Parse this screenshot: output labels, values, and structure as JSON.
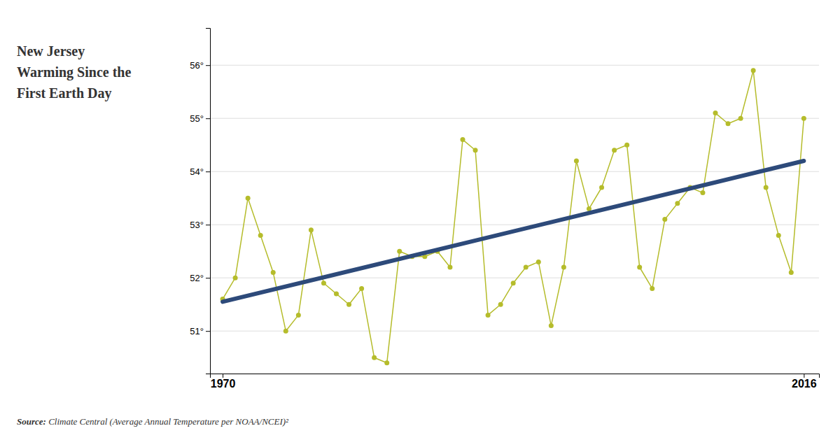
{
  "chart_data": {
    "type": "line",
    "title": [
      "New Jersey",
      "Warming Since the",
      "First Earth Day"
    ],
    "annotations": [
      "Source:",
      " Climate Central (Average Annual Temperature per NOAA/NCEI)²"
    ],
    "x": [
      1970,
      1971,
      1972,
      1973,
      1974,
      1975,
      1976,
      1977,
      1978,
      1979,
      1980,
      1981,
      1982,
      1983,
      1984,
      1985,
      1986,
      1987,
      1988,
      1989,
      1990,
      1991,
      1992,
      1993,
      1994,
      1995,
      1996,
      1997,
      1998,
      1999,
      2000,
      2001,
      2002,
      2003,
      2004,
      2005,
      2006,
      2007,
      2008,
      2009,
      2010,
      2011,
      2012,
      2013,
      2014,
      2015,
      2016
    ],
    "series": [
      {
        "color": "#b5bc2b",
        "marker": "circle",
        "values": [
          51.6,
          52.0,
          53.5,
          52.8,
          52.1,
          51.0,
          51.3,
          52.9,
          51.9,
          51.7,
          51.5,
          51.8,
          50.5,
          50.4,
          52.5,
          52.4,
          52.4,
          52.5,
          52.2,
          54.6,
          54.4,
          51.3,
          51.5,
          51.9,
          52.2,
          52.3,
          51.1,
          52.2,
          54.2,
          53.3,
          53.7,
          54.4,
          54.5,
          52.2,
          51.8,
          53.1,
          53.4,
          53.7,
          53.6,
          55.1,
          54.9,
          55.0,
          55.9,
          53.7,
          52.8,
          52.1,
          55.0
        ]
      },
      {
        "color": "#2d4a7a",
        "x": [
          1970,
          2016
        ],
        "values": [
          51.55,
          54.2
        ]
      }
    ],
    "xlim": [
      1969.0,
      2017.2
    ],
    "xticks": [
      1970,
      2016
    ],
    "ylim": [
      50.2,
      56.7
    ],
    "yticks": [
      {
        "value": 51,
        "label": "51°"
      },
      {
        "value": 52,
        "label": "52°"
      },
      {
        "value": 53,
        "label": "53°"
      },
      {
        "value": 54,
        "label": "54°"
      },
      {
        "value": 55,
        "label": "55°"
      },
      {
        "value": 56,
        "label": "56°"
      }
    ],
    "grid": true
  }
}
